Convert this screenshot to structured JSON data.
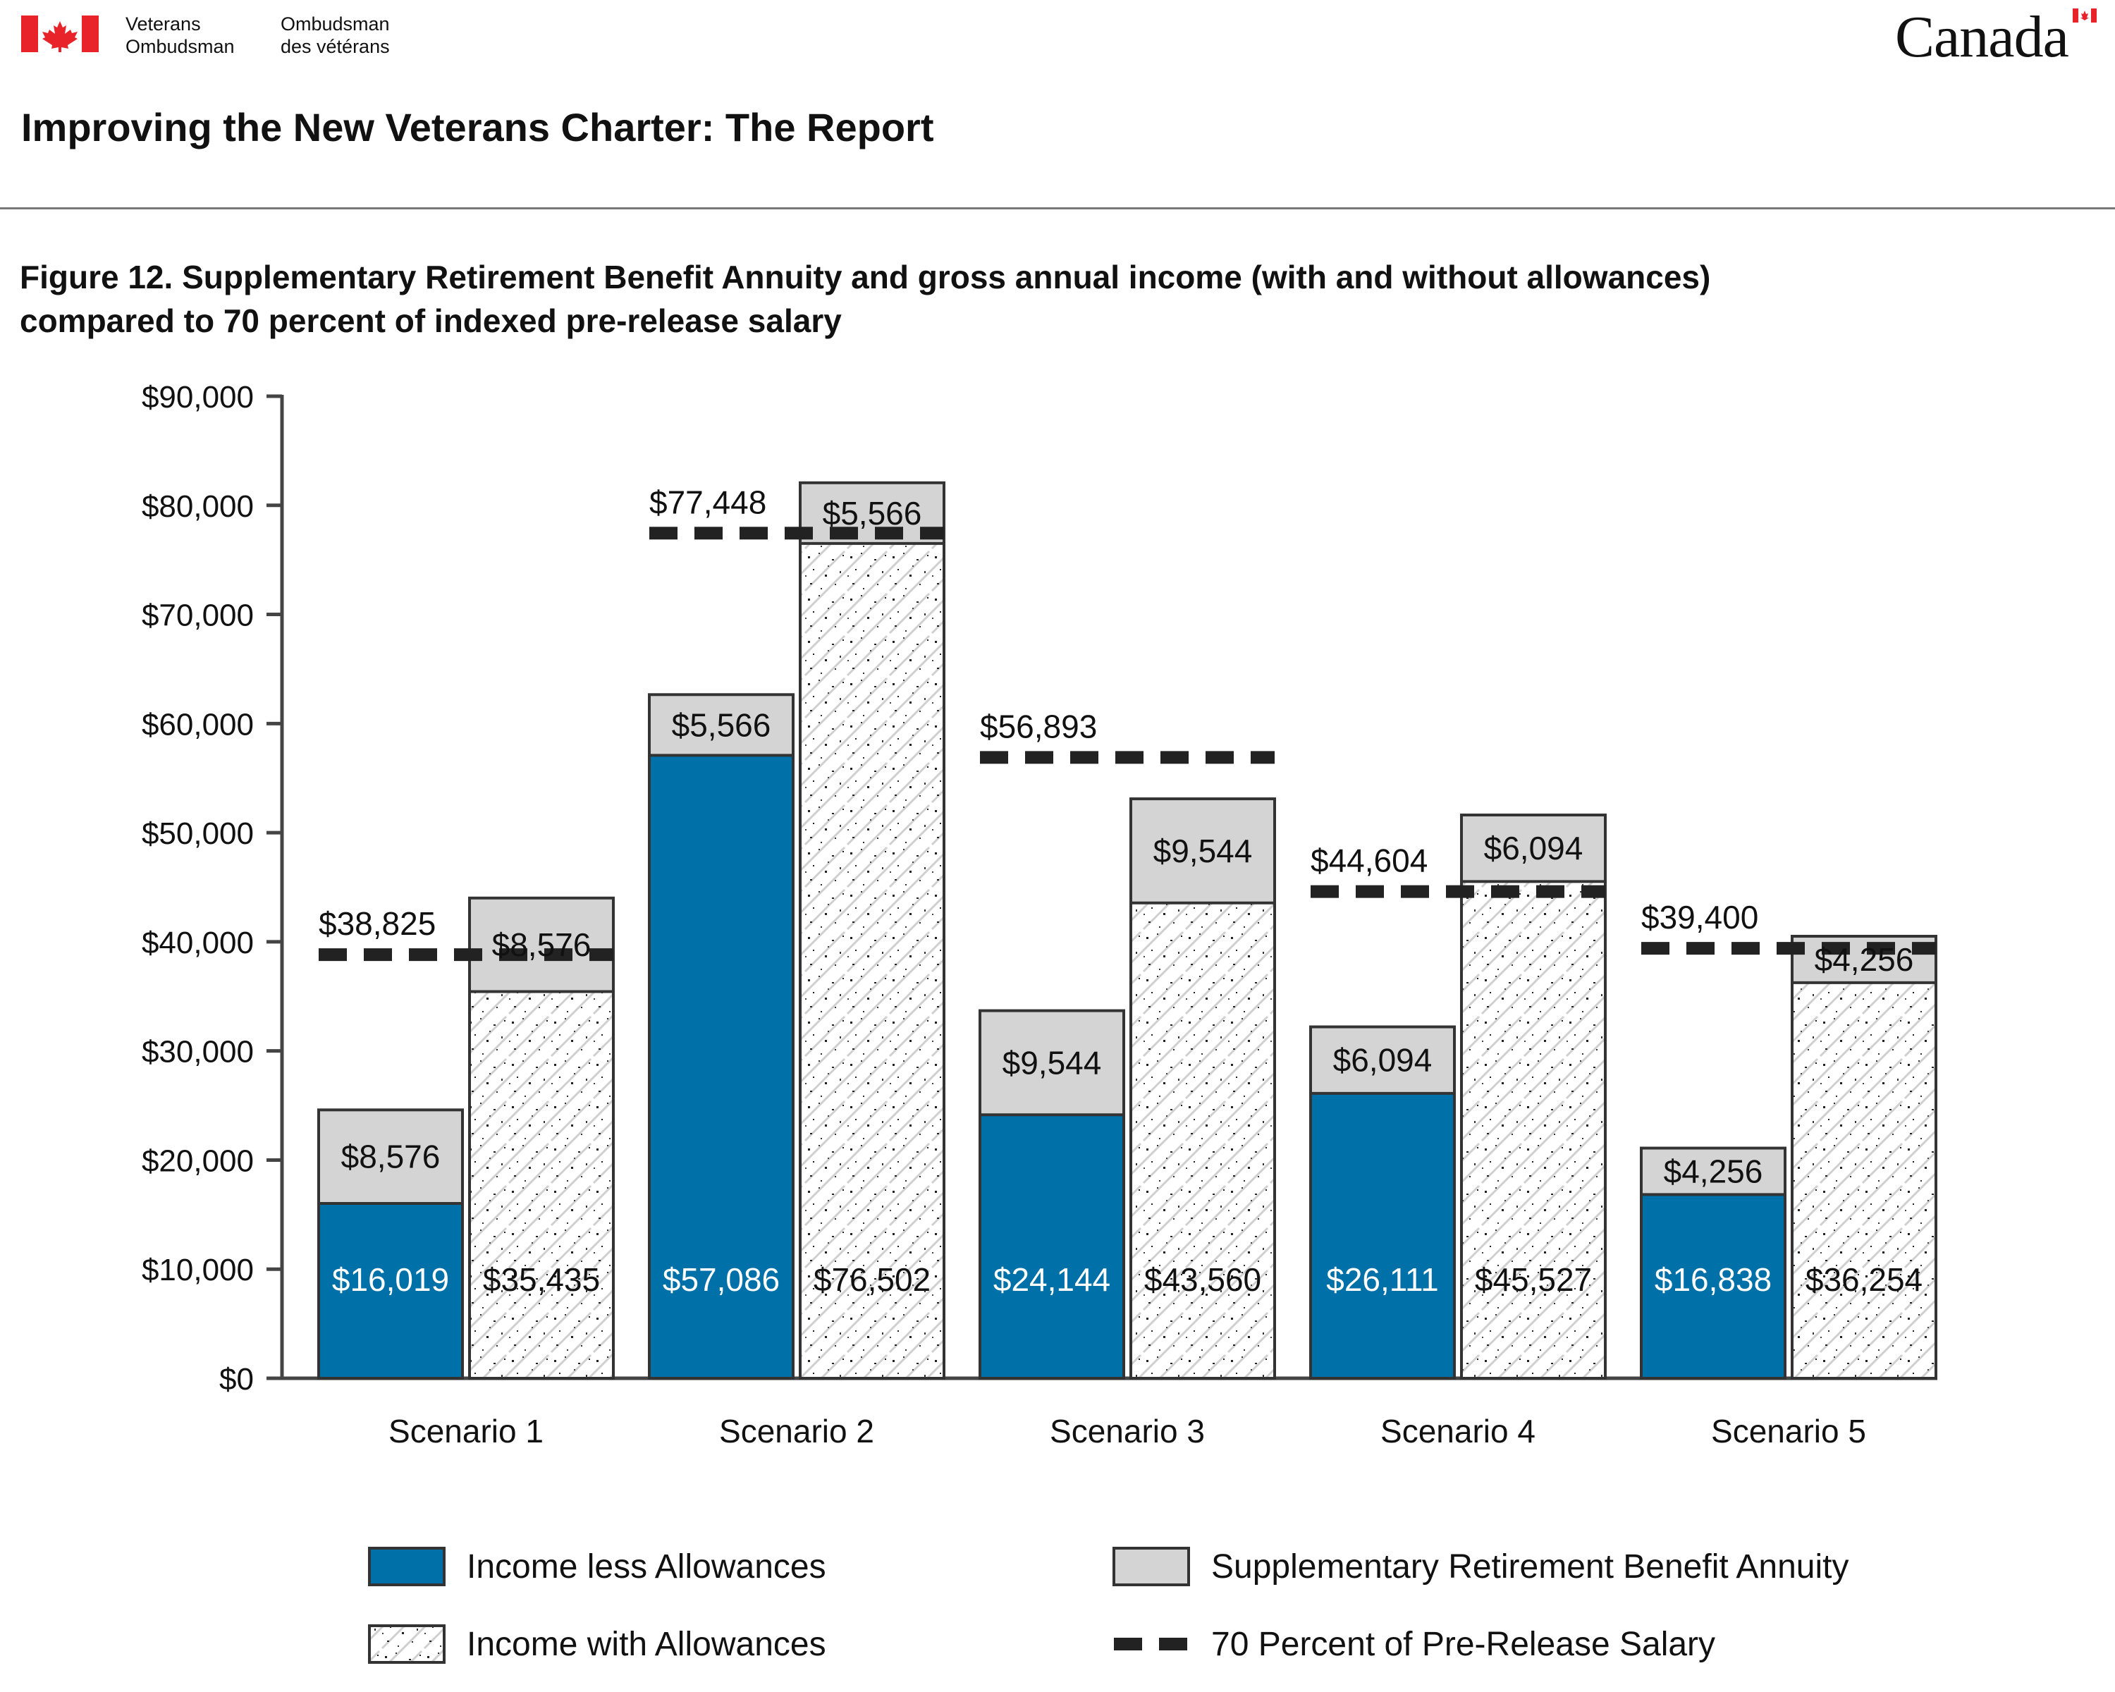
{
  "header": {
    "org_en_line1": "Veterans",
    "org_en_line2": "Ombudsman",
    "org_fr_line1": "Ombudsman",
    "org_fr_line2": "des vétérans",
    "wordmark": "Canada",
    "report_title": "Improving the New Veterans Charter: The Report"
  },
  "figure": {
    "title_line1": "Figure 12. Supplementary Retirement Benefit Annuity and gross annual income (with and without allowances)",
    "title_line2": "compared to 70 percent of indexed pre-release salary"
  },
  "colors": {
    "income_less": "#0070a8",
    "annuity": "#d4d4d4",
    "with_allowances": "#ffffff",
    "threshold": "#222222",
    "flag_red": "#e8232a"
  },
  "chart_data": {
    "type": "bar",
    "stacked": true,
    "categories": [
      "Scenario 1",
      "Scenario 2",
      "Scenario 3",
      "Scenario 4",
      "Scenario 5"
    ],
    "ylim": [
      0,
      90000
    ],
    "yticks": [
      0,
      10000,
      20000,
      30000,
      40000,
      50000,
      60000,
      70000,
      80000,
      90000
    ],
    "ytick_labels": [
      "$0",
      "$10,000",
      "$20,000",
      "$30,000",
      "$40,000",
      "$50,000",
      "$60,000",
      "$70,000",
      "$80,000",
      "$90,000"
    ],
    "series": [
      {
        "name": "Income less Allowances",
        "stack": "left",
        "values": [
          16019,
          57086,
          24144,
          26111,
          16838
        ],
        "labels": [
          "$16,019",
          "$57,086",
          "$24,144",
          "$26,111",
          "$16,838"
        ]
      },
      {
        "name": "Income with Allowances",
        "stack": "right",
        "values": [
          35435,
          76502,
          43560,
          45527,
          36254
        ],
        "labels": [
          "$35,435",
          "$76,502",
          "$43,560",
          "$45,527",
          "$36,254"
        ]
      },
      {
        "name": "Supplementary Retirement Benefit Annuity",
        "stack": "both",
        "values": [
          8576,
          5566,
          9544,
          6094,
          4256
        ],
        "labels": [
          "$8,576",
          "$5,566",
          "$9,544",
          "$6,094",
          "$4,256"
        ]
      },
      {
        "name": "70 Percent of Pre-Release Salary",
        "type": "threshold",
        "values": [
          38825,
          77448,
          56893,
          44604,
          39400
        ],
        "labels": [
          "$38,825",
          "$77,448",
          "$56,893",
          "$44,604",
          "$39,400"
        ]
      }
    ],
    "legend": {
      "position": "bottom",
      "items": [
        "Income less Allowances",
        "Supplementary Retirement Benefit Annuity",
        "Income with Allowances",
        "70 Percent of Pre-Release Salary"
      ]
    }
  }
}
